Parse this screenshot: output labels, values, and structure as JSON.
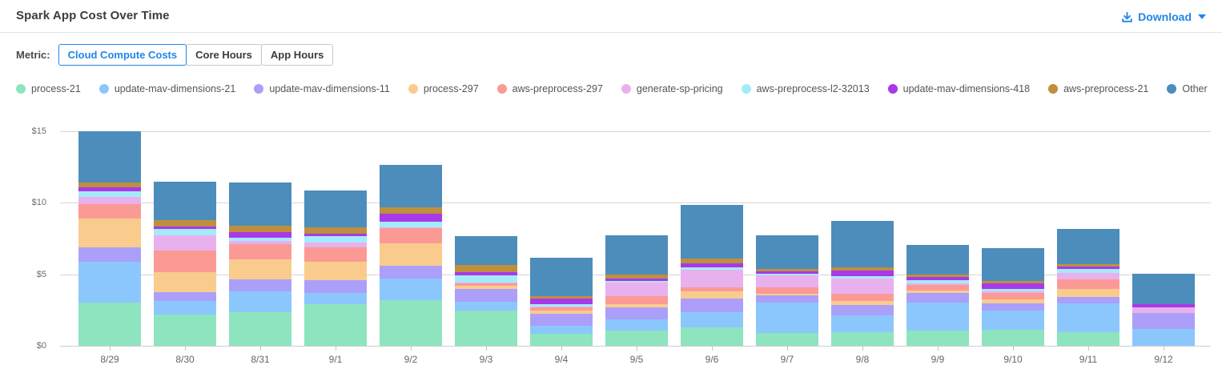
{
  "header": {
    "title": "Spark App Cost Over Time",
    "download_label": "Download"
  },
  "metric": {
    "label": "Metric:",
    "options": [
      "Cloud Compute Costs",
      "Core Hours",
      "App Hours"
    ],
    "selected": "Cloud Compute Costs"
  },
  "colors": {
    "accent": "#1f87e8"
  },
  "chart_data": {
    "type": "bar",
    "stacked": true,
    "title": "Spark App Cost Over Time",
    "xlabel": "",
    "ylabel": "Cloud Compute Costs ($)",
    "ylim": [
      0,
      15
    ],
    "grid": true,
    "legend_position": "top",
    "y_ticks": [
      {
        "label": "$0",
        "value": 0
      },
      {
        "label": "$5",
        "value": 5
      },
      {
        "label": "$10",
        "value": 10
      },
      {
        "label": "$15",
        "value": 15
      }
    ],
    "categories": [
      "8/29",
      "8/30",
      "8/31",
      "9/1",
      "9/2",
      "9/3",
      "9/4",
      "9/5",
      "9/6",
      "9/7",
      "9/8",
      "9/9",
      "9/10",
      "9/11",
      "9/12"
    ],
    "series": [
      {
        "name": "process-21",
        "color": "#8de4bf",
        "values": [
          3.05,
          2.18,
          2.37,
          2.93,
          3.17,
          2.48,
          0.84,
          1.06,
          1.31,
          0.88,
          0.93,
          1.06,
          1.12,
          0.93,
          0.0
        ]
      },
      {
        "name": "update-mav-dimensions-21",
        "color": "#8bc7fc",
        "values": [
          2.81,
          0.94,
          1.46,
          0.75,
          1.55,
          0.6,
          0.56,
          0.8,
          1.06,
          2.17,
          1.18,
          1.98,
          1.36,
          2.05,
          1.18
        ]
      },
      {
        "name": "update-mav-dimensions-11",
        "color": "#ab9ffa",
        "values": [
          1.03,
          0.61,
          0.84,
          0.89,
          0.88,
          0.9,
          0.84,
          0.84,
          0.93,
          0.45,
          0.75,
          0.64,
          0.51,
          0.43,
          1.12
        ]
      },
      {
        "name": "process-297",
        "color": "#f9cc8e",
        "values": [
          2.03,
          1.4,
          1.4,
          1.31,
          1.59,
          0.22,
          0.24,
          0.22,
          0.49,
          0.15,
          0.26,
          0.19,
          0.24,
          0.56,
          0.0
        ]
      },
      {
        "name": "aws-preprocess-297",
        "color": "#fb9a94",
        "values": [
          1.01,
          1.54,
          1.03,
          1.03,
          1.03,
          0.15,
          0.19,
          0.56,
          0.32,
          0.41,
          0.52,
          0.37,
          0.45,
          0.69,
          0.0
        ]
      },
      {
        "name": "generate-sp-pricing",
        "color": "#e9b0ee",
        "values": [
          0.46,
          1.08,
          0.24,
          0.32,
          0.05,
          0.05,
          0.08,
          0.93,
          1.21,
          0.86,
          1.08,
          0.11,
          0.11,
          0.43,
          0.37
        ]
      },
      {
        "name": "aws-preprocess-l2-32013",
        "color": "#a3ebfa",
        "values": [
          0.43,
          0.41,
          0.22,
          0.43,
          0.43,
          0.5,
          0.18,
          0.15,
          0.15,
          0.13,
          0.14,
          0.22,
          0.19,
          0.26,
          0.0
        ]
      },
      {
        "name": "update-mav-dimensions-418",
        "color": "#a839e8",
        "values": [
          0.25,
          0.19,
          0.37,
          0.18,
          0.56,
          0.24,
          0.38,
          0.15,
          0.32,
          0.13,
          0.42,
          0.23,
          0.37,
          0.19,
          0.26
        ]
      },
      {
        "name": "aws-preprocess-21",
        "color": "#bf8f3e",
        "values": [
          0.37,
          0.43,
          0.47,
          0.47,
          0.45,
          0.5,
          0.14,
          0.26,
          0.32,
          0.19,
          0.19,
          0.19,
          0.19,
          0.19,
          0.0
        ]
      },
      {
        "name": "Other",
        "color": "#4c8dbc",
        "values": [
          3.56,
          2.67,
          3.03,
          2.54,
          2.95,
          2.05,
          2.68,
          2.73,
          3.73,
          2.35,
          3.25,
          2.05,
          2.31,
          2.43,
          2.11
        ]
      }
    ]
  }
}
